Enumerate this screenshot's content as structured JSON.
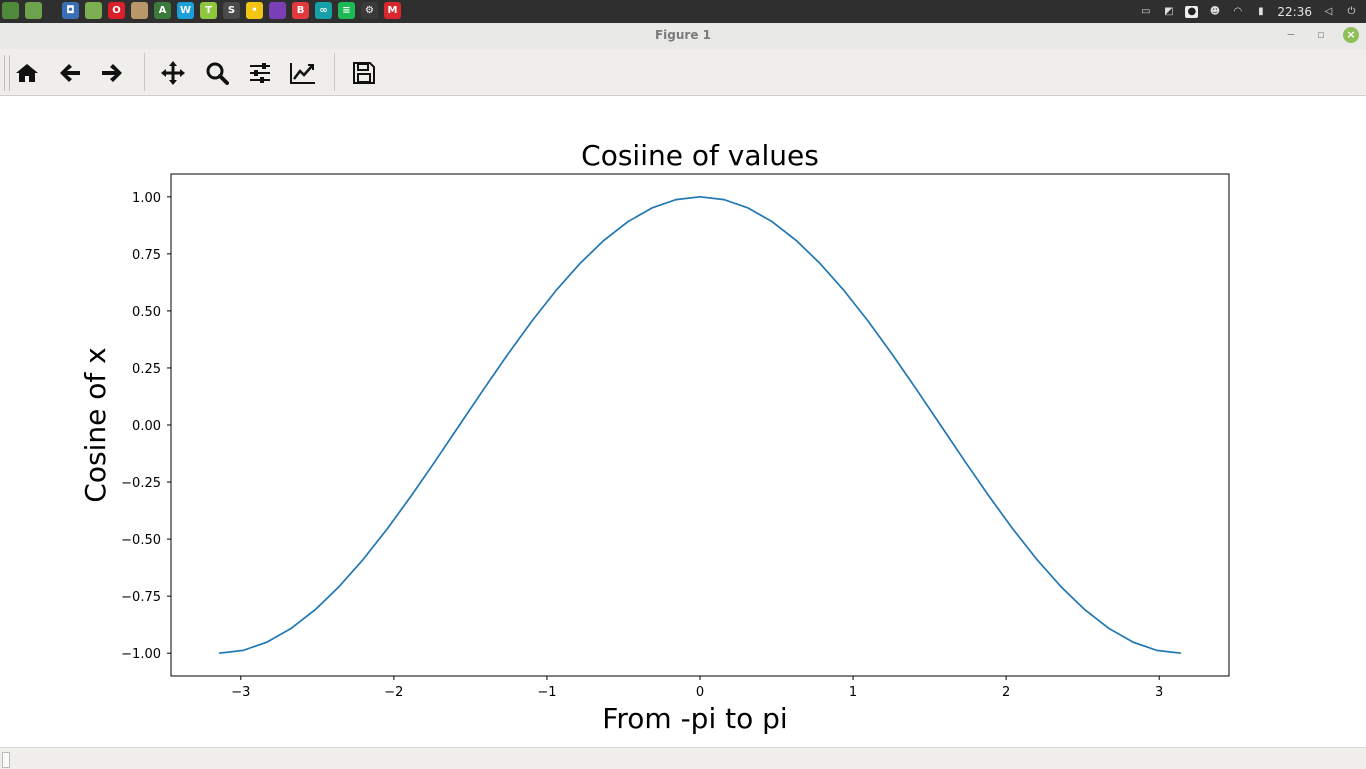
{
  "system_panel": {
    "clock": "22:36",
    "launcher_icons": [
      {
        "name": "app-menu-icon",
        "color": "#4e8a3a",
        "glyph": ""
      },
      {
        "name": "show-desktop-icon",
        "color": "#6da34d",
        "glyph": ""
      },
      {
        "name": "screenshot-icon",
        "color": "#3b6fb5",
        "glyph": "◘"
      },
      {
        "name": "files-icon",
        "color": "#7cae52",
        "glyph": ""
      },
      {
        "name": "opera-icon",
        "color": "#d9202a",
        "glyph": "O"
      },
      {
        "name": "archive-icon",
        "color": "#b89868",
        "glyph": ""
      },
      {
        "name": "android-studio-icon",
        "color": "#3c7a3c",
        "glyph": "A"
      },
      {
        "name": "webstorm-icon",
        "color": "#1c9fd8",
        "glyph": "W"
      },
      {
        "name": "texstudio-icon",
        "color": "#8fc63f",
        "glyph": "T"
      },
      {
        "name": "sublime-text-icon",
        "color": "#4a4a4a",
        "glyph": "S"
      },
      {
        "name": "tweak-icon",
        "color": "#f2c414",
        "glyph": "•"
      },
      {
        "name": "tor-browser-icon",
        "color": "#7a3fb5",
        "glyph": ""
      },
      {
        "name": "brave-icon",
        "color": "#e03a3e",
        "glyph": "B"
      },
      {
        "name": "arduino-icon",
        "color": "#16a0a8",
        "glyph": "∞"
      },
      {
        "name": "spotify-icon",
        "color": "#1db954",
        "glyph": "≡"
      },
      {
        "name": "steam-icon",
        "color": "#3a3a3a",
        "glyph": "⚙"
      },
      {
        "name": "mega-icon",
        "color": "#d9272e",
        "glyph": "M"
      }
    ]
  },
  "window": {
    "title": "Figure 1",
    "minimize_glyph": "−",
    "maximize_glyph": "▫",
    "close_glyph": "×"
  },
  "toolbar": {
    "buttons": [
      {
        "name": "home-icon"
      },
      {
        "name": "back-arrow-icon"
      },
      {
        "name": "forward-arrow-icon"
      },
      {
        "name": "pan-move-icon"
      },
      {
        "name": "zoom-magnifier-icon"
      },
      {
        "name": "configure-subplots-icon"
      },
      {
        "name": "edit-axis-icon"
      },
      {
        "name": "save-floppy-icon"
      }
    ]
  },
  "chart_data": {
    "type": "line",
    "title": "Cosiine of values",
    "xlabel": "From -pi to pi",
    "ylabel": "Cosine of x",
    "xlim": [
      -3.456,
      3.456
    ],
    "ylim": [
      -1.1,
      1.1
    ],
    "xticks": [
      -3,
      -2,
      -1,
      0,
      1,
      2,
      3
    ],
    "xtick_labels": [
      "−3",
      "−2",
      "−1",
      "0",
      "1",
      "2",
      "3"
    ],
    "yticks": [
      1.0,
      0.75,
      0.5,
      0.25,
      0.0,
      -0.25,
      -0.5,
      -0.75,
      -1.0
    ],
    "ytick_labels": [
      "1.00",
      "0.75",
      "0.50",
      "0.25",
      "0.00",
      "−0.25",
      "−0.50",
      "−0.75",
      "−1.00"
    ],
    "grid": false,
    "series": [
      {
        "color": "#1f77b4",
        "x": [
          -3.1416,
          -2.9845,
          -2.8274,
          -2.6704,
          -2.5133,
          -2.3562,
          -2.1991,
          -2.042,
          -1.885,
          -1.7279,
          -1.5708,
          -1.4137,
          -1.2566,
          -1.0996,
          -0.9425,
          -0.7854,
          -0.6283,
          -0.4712,
          -0.3142,
          -0.1571,
          0.0,
          0.1571,
          0.3142,
          0.4712,
          0.6283,
          0.7854,
          0.9425,
          1.0996,
          1.2566,
          1.4137,
          1.5708,
          1.7279,
          1.885,
          2.042,
          2.1991,
          2.3562,
          2.5133,
          2.6704,
          2.8274,
          2.9845,
          3.1416
        ],
        "y": [
          -1.0,
          -0.9877,
          -0.9511,
          -0.891,
          -0.809,
          -0.7071,
          -0.5878,
          -0.454,
          -0.309,
          -0.1564,
          0.0,
          0.1564,
          0.309,
          0.454,
          0.5878,
          0.7071,
          0.809,
          0.891,
          0.9511,
          0.9877,
          1.0,
          0.9877,
          0.9511,
          0.891,
          0.809,
          0.7071,
          0.5878,
          0.454,
          0.309,
          0.1564,
          0.0,
          -0.1564,
          -0.309,
          -0.454,
          -0.5878,
          -0.7071,
          -0.809,
          -0.891,
          -0.9511,
          -0.9877,
          -1.0
        ]
      }
    ]
  }
}
